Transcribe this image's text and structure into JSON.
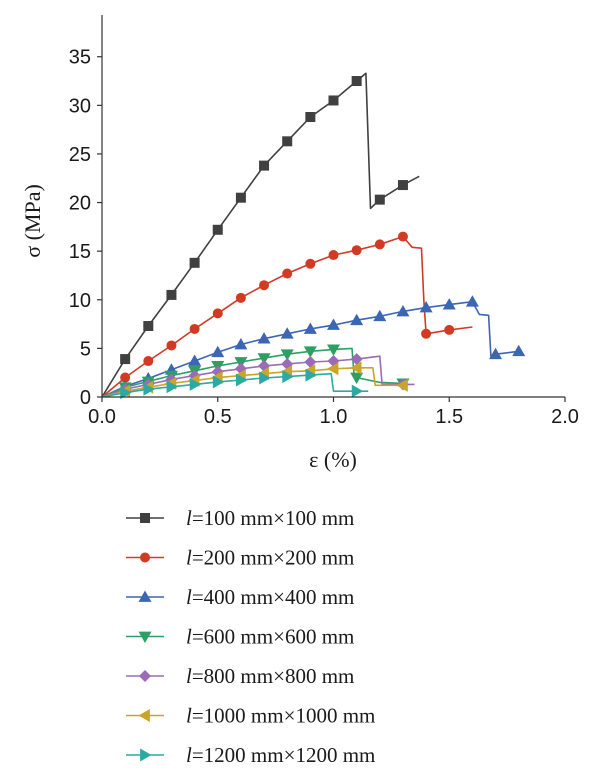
{
  "chart_data": {
    "type": "line",
    "xlabel": "ε (%)",
    "ylabel": "σ (MPa)",
    "xlim": [
      0,
      2.0
    ],
    "ylim": [
      0,
      36
    ],
    "xticks": [
      0.0,
      0.5,
      1.0,
      1.5,
      2.0
    ],
    "xtick_labels": [
      "0.0",
      "0.5",
      "1.0",
      "1.5",
      "2.0"
    ],
    "yticks": [
      0,
      5,
      10,
      15,
      20,
      25,
      30,
      35
    ],
    "ytick_labels": [
      "0",
      "5",
      "10",
      "15",
      "20",
      "25",
      "30",
      "35"
    ],
    "grid": false,
    "legend_position": "below",
    "series": [
      {
        "name": "=100 mm×100 mm",
        "label_var": "l",
        "color": "#404040",
        "marker": "square",
        "line": [
          [
            0,
            0
          ],
          [
            0.1,
            3.9
          ],
          [
            0.2,
            7.3
          ],
          [
            0.3,
            10.5
          ],
          [
            0.4,
            13.8
          ],
          [
            0.5,
            17.2
          ],
          [
            0.6,
            20.5
          ],
          [
            0.7,
            23.8
          ],
          [
            0.8,
            26.3
          ],
          [
            0.9,
            28.8
          ],
          [
            1.0,
            30.5
          ],
          [
            1.1,
            32.5
          ],
          [
            1.14,
            33.3
          ],
          [
            1.16,
            19.4
          ],
          [
            1.2,
            20.3
          ],
          [
            1.3,
            21.8
          ],
          [
            1.37,
            22.7
          ]
        ],
        "markers": [
          [
            0.1,
            3.9
          ],
          [
            0.2,
            7.3
          ],
          [
            0.3,
            10.5
          ],
          [
            0.4,
            13.8
          ],
          [
            0.5,
            17.2
          ],
          [
            0.6,
            20.5
          ],
          [
            0.7,
            23.8
          ],
          [
            0.8,
            26.3
          ],
          [
            0.9,
            28.8
          ],
          [
            1.0,
            30.5
          ],
          [
            1.1,
            32.5
          ],
          [
            1.2,
            20.3
          ],
          [
            1.3,
            21.8
          ]
        ]
      },
      {
        "name": "=200 mm×200 mm",
        "label_var": "l",
        "color": "#d23a23",
        "marker": "circle",
        "line": [
          [
            0,
            0
          ],
          [
            0.1,
            2.0
          ],
          [
            0.2,
            3.7
          ],
          [
            0.3,
            5.3
          ],
          [
            0.4,
            7.0
          ],
          [
            0.5,
            8.6
          ],
          [
            0.6,
            10.2
          ],
          [
            0.7,
            11.5
          ],
          [
            0.8,
            12.7
          ],
          [
            0.9,
            13.7
          ],
          [
            1.0,
            14.6
          ],
          [
            1.1,
            15.1
          ],
          [
            1.2,
            15.7
          ],
          [
            1.3,
            16.5
          ],
          [
            1.34,
            15.4
          ],
          [
            1.38,
            15.3
          ],
          [
            1.39,
            10.0
          ],
          [
            1.4,
            6.5
          ],
          [
            1.5,
            6.9
          ],
          [
            1.6,
            7.2
          ]
        ],
        "markers": [
          [
            0.1,
            2.0
          ],
          [
            0.2,
            3.7
          ],
          [
            0.3,
            5.3
          ],
          [
            0.4,
            7.0
          ],
          [
            0.5,
            8.6
          ],
          [
            0.6,
            10.2
          ],
          [
            0.7,
            11.5
          ],
          [
            0.8,
            12.7
          ],
          [
            0.9,
            13.7
          ],
          [
            1.0,
            14.6
          ],
          [
            1.1,
            15.1
          ],
          [
            1.2,
            15.7
          ],
          [
            1.3,
            16.5
          ],
          [
            1.4,
            6.5
          ],
          [
            1.5,
            6.9
          ]
        ]
      },
      {
        "name": "=400 mm×400 mm",
        "label_var": "l",
        "color": "#3b66b4",
        "marker": "triangle-up",
        "line": [
          [
            0,
            0
          ],
          [
            0.1,
            1.1
          ],
          [
            0.2,
            1.9
          ],
          [
            0.3,
            2.8
          ],
          [
            0.4,
            3.7
          ],
          [
            0.5,
            4.6
          ],
          [
            0.6,
            5.4
          ],
          [
            0.7,
            6.0
          ],
          [
            0.8,
            6.5
          ],
          [
            0.9,
            7.0
          ],
          [
            1.0,
            7.4
          ],
          [
            1.1,
            7.9
          ],
          [
            1.2,
            8.3
          ],
          [
            1.3,
            8.8
          ],
          [
            1.4,
            9.2
          ],
          [
            1.5,
            9.5
          ],
          [
            1.6,
            9.8
          ],
          [
            1.63,
            8.5
          ],
          [
            1.67,
            8.4
          ],
          [
            1.68,
            4.2
          ],
          [
            1.7,
            4.4
          ],
          [
            1.8,
            4.7
          ]
        ],
        "markers": [
          [
            0.1,
            1.1
          ],
          [
            0.2,
            1.9
          ],
          [
            0.3,
            2.8
          ],
          [
            0.4,
            3.7
          ],
          [
            0.5,
            4.6
          ],
          [
            0.6,
            5.4
          ],
          [
            0.7,
            6.0
          ],
          [
            0.8,
            6.5
          ],
          [
            0.9,
            7.0
          ],
          [
            1.0,
            7.4
          ],
          [
            1.1,
            7.9
          ],
          [
            1.2,
            8.3
          ],
          [
            1.3,
            8.8
          ],
          [
            1.4,
            9.2
          ],
          [
            1.5,
            9.5
          ],
          [
            1.6,
            9.8
          ],
          [
            1.7,
            4.4
          ],
          [
            1.8,
            4.7
          ]
        ]
      },
      {
        "name": "=600 mm×600 mm",
        "label_var": "l",
        "color": "#2e9e62",
        "marker": "triangle-down",
        "line": [
          [
            0,
            0
          ],
          [
            0.1,
            1.0
          ],
          [
            0.2,
            1.6
          ],
          [
            0.3,
            2.2
          ],
          [
            0.4,
            2.7
          ],
          [
            0.5,
            3.2
          ],
          [
            0.6,
            3.6
          ],
          [
            0.7,
            4.0
          ],
          [
            0.8,
            4.4
          ],
          [
            0.9,
            4.7
          ],
          [
            1.0,
            4.9
          ],
          [
            1.08,
            5.0
          ],
          [
            1.09,
            2.0
          ],
          [
            1.1,
            2.0
          ],
          [
            1.2,
            1.5
          ],
          [
            1.3,
            1.4
          ]
        ],
        "markers": [
          [
            0.1,
            1.0
          ],
          [
            0.2,
            1.6
          ],
          [
            0.3,
            2.2
          ],
          [
            0.4,
            2.7
          ],
          [
            0.5,
            3.2
          ],
          [
            0.6,
            3.6
          ],
          [
            0.7,
            4.0
          ],
          [
            0.8,
            4.4
          ],
          [
            0.9,
            4.7
          ],
          [
            1.0,
            4.9
          ],
          [
            1.1,
            2.0
          ],
          [
            1.3,
            1.4
          ]
        ]
      },
      {
        "name": "=800 mm×800 mm",
        "label_var": "l",
        "color": "#9b6bb5",
        "marker": "diamond",
        "line": [
          [
            0,
            0
          ],
          [
            0.1,
            0.8
          ],
          [
            0.2,
            1.3
          ],
          [
            0.3,
            1.8
          ],
          [
            0.4,
            2.2
          ],
          [
            0.5,
            2.6
          ],
          [
            0.6,
            2.9
          ],
          [
            0.7,
            3.2
          ],
          [
            0.8,
            3.4
          ],
          [
            0.9,
            3.6
          ],
          [
            1.0,
            3.7
          ],
          [
            1.1,
            3.9
          ],
          [
            1.2,
            4.2
          ],
          [
            1.21,
            1.3
          ],
          [
            1.3,
            1.3
          ],
          [
            1.35,
            1.3
          ]
        ],
        "markers": [
          [
            0.1,
            0.8
          ],
          [
            0.2,
            1.3
          ],
          [
            0.3,
            1.8
          ],
          [
            0.4,
            2.2
          ],
          [
            0.5,
            2.6
          ],
          [
            0.6,
            2.9
          ],
          [
            0.7,
            3.2
          ],
          [
            0.8,
            3.4
          ],
          [
            0.9,
            3.6
          ],
          [
            1.0,
            3.7
          ],
          [
            1.1,
            3.9
          ],
          [
            1.3,
            1.3
          ]
        ]
      },
      {
        "name": "=1000 mm×1000 mm",
        "label_var": "l",
        "color": "#c9a52a",
        "marker": "triangle-left",
        "line": [
          [
            0,
            0
          ],
          [
            0.1,
            0.6
          ],
          [
            0.2,
            1.0
          ],
          [
            0.3,
            1.4
          ],
          [
            0.4,
            1.7
          ],
          [
            0.5,
            2.0
          ],
          [
            0.6,
            2.2
          ],
          [
            0.7,
            2.4
          ],
          [
            0.8,
            2.6
          ],
          [
            0.9,
            2.7
          ],
          [
            1.0,
            2.9
          ],
          [
            1.1,
            3.0
          ],
          [
            1.17,
            3.0
          ],
          [
            1.18,
            1.2
          ],
          [
            1.25,
            1.2
          ],
          [
            1.3,
            1.2
          ]
        ],
        "markers": [
          [
            0.1,
            0.6
          ],
          [
            0.2,
            1.0
          ],
          [
            0.3,
            1.4
          ],
          [
            0.4,
            1.7
          ],
          [
            0.5,
            2.0
          ],
          [
            0.6,
            2.2
          ],
          [
            0.7,
            2.4
          ],
          [
            0.8,
            2.6
          ],
          [
            0.9,
            2.7
          ],
          [
            1.0,
            2.9
          ],
          [
            1.1,
            3.0
          ],
          [
            1.3,
            1.2
          ]
        ]
      },
      {
        "name": "=1200 mm×1200 mm",
        "label_var": "l",
        "color": "#2aa9a5",
        "marker": "triangle-right",
        "line": [
          [
            0,
            0
          ],
          [
            0.1,
            0.45
          ],
          [
            0.2,
            0.8
          ],
          [
            0.3,
            1.05
          ],
          [
            0.4,
            1.3
          ],
          [
            0.5,
            1.55
          ],
          [
            0.6,
            1.75
          ],
          [
            0.7,
            1.95
          ],
          [
            0.8,
            2.1
          ],
          [
            0.9,
            2.25
          ],
          [
            0.99,
            2.4
          ],
          [
            1.0,
            0.6
          ],
          [
            1.1,
            0.6
          ],
          [
            1.15,
            0.6
          ]
        ],
        "markers": [
          [
            0.1,
            0.45
          ],
          [
            0.2,
            0.8
          ],
          [
            0.3,
            1.05
          ],
          [
            0.4,
            1.3
          ],
          [
            0.5,
            1.55
          ],
          [
            0.6,
            1.75
          ],
          [
            0.7,
            1.95
          ],
          [
            0.8,
            2.1
          ],
          [
            0.9,
            2.25
          ],
          [
            1.1,
            0.6
          ]
        ]
      }
    ]
  }
}
